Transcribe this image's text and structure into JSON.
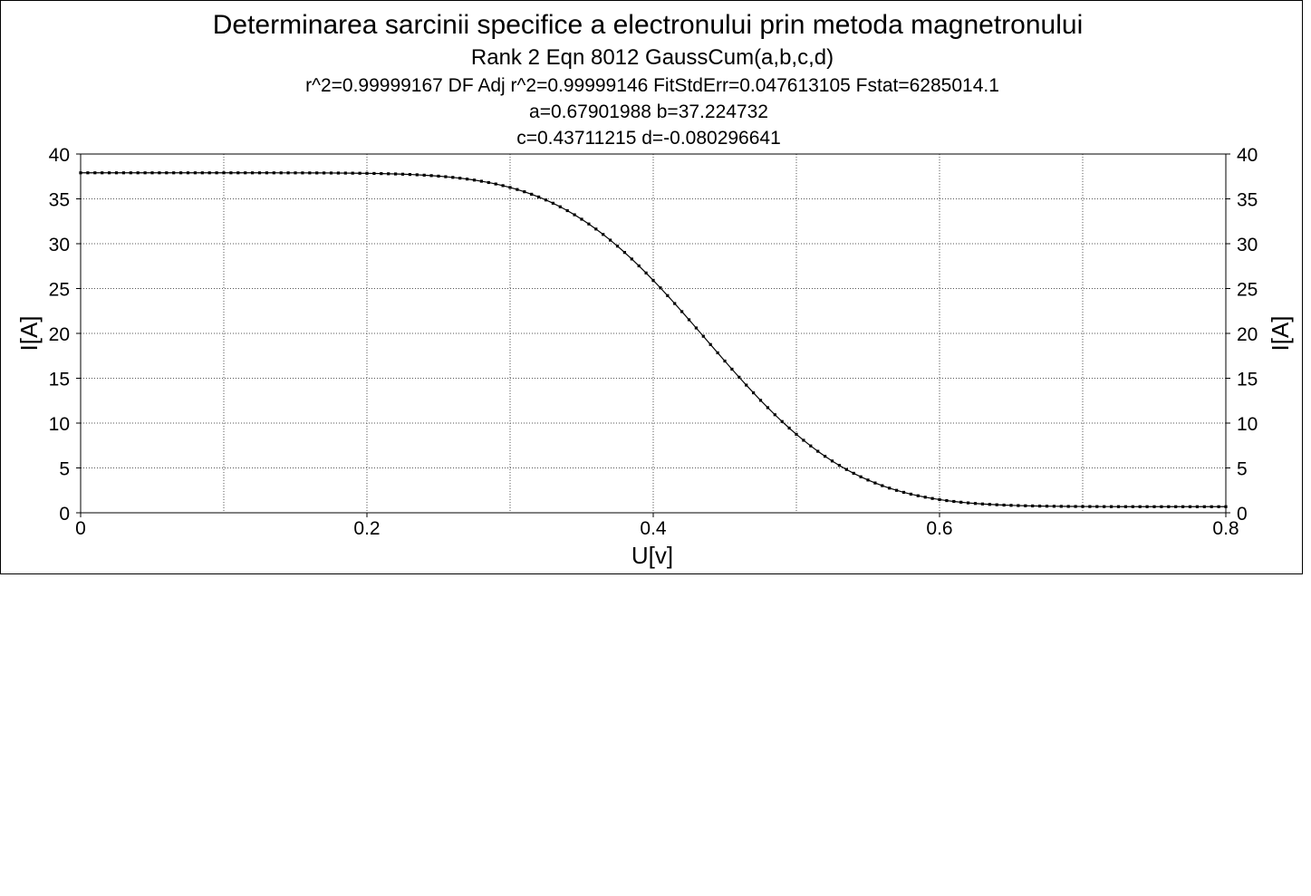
{
  "chart_data": {
    "type": "scatter",
    "title": "Determinarea sarcinii specifice a electronului prin metoda magnetronului",
    "subtitle": "Rank 2  Eqn 8012  GaussCum(a,b,c,d)",
    "stats_line": "r^2=0.99999167  DF Adj r^2=0.99999146  FitStdErr=0.047613105  Fstat=6285014.1",
    "params_line1": "a=0.67901988 b=37.224732",
    "params_line2": "c=0.43711215 d=-0.080296641",
    "xlabel": "U[v]",
    "ylabel": "I[A]",
    "ylabel_right": "I[A]",
    "xlim": [
      0,
      0.8
    ],
    "ylim": [
      0,
      40
    ],
    "x_ticks": [
      "0",
      "0.2",
      "0.4",
      "0.6",
      "0.8"
    ],
    "y_ticks": [
      "0",
      "5",
      "10",
      "15",
      "20",
      "25",
      "30",
      "35",
      "40"
    ],
    "grid": true,
    "fit": {
      "a": 0.67901988,
      "b": 37.224732,
      "c": 0.43711215,
      "d": -0.080296641
    },
    "x": [
      0,
      0.05,
      0.1,
      0.15,
      0.2,
      0.25,
      0.3,
      0.35,
      0.4,
      0.45,
      0.5,
      0.55,
      0.6,
      0.65,
      0.7,
      0.75,
      0.8
    ],
    "y": [
      37.9,
      37.9,
      37.9,
      37.9,
      37.8,
      37.4,
      36.2,
      32.8,
      25.9,
      17.4,
      9.6,
      4.2,
      1.5,
      0.9,
      0.7,
      0.7,
      0.7
    ],
    "series": [
      {
        "name": "",
        "color": "#000000",
        "marker": "square"
      }
    ]
  }
}
